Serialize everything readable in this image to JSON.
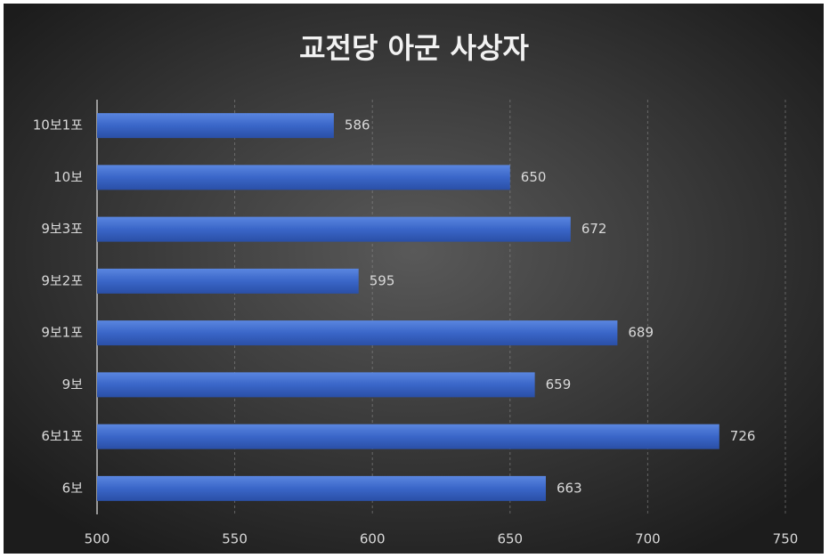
{
  "chart_data": {
    "type": "bar",
    "orientation": "horizontal",
    "title": "교전당 아군 사상자",
    "categories": [
      "10보1포",
      "10보",
      "9보3포",
      "9보2포",
      "9보1포",
      "9보",
      "6보1포",
      "6보"
    ],
    "values": [
      586,
      650,
      672,
      595,
      689,
      659,
      726,
      663
    ],
    "color": "#3a66c8",
    "xlim": [
      500,
      750
    ],
    "xticks": [
      500,
      550,
      600,
      650,
      700,
      750
    ],
    "grid": true
  }
}
